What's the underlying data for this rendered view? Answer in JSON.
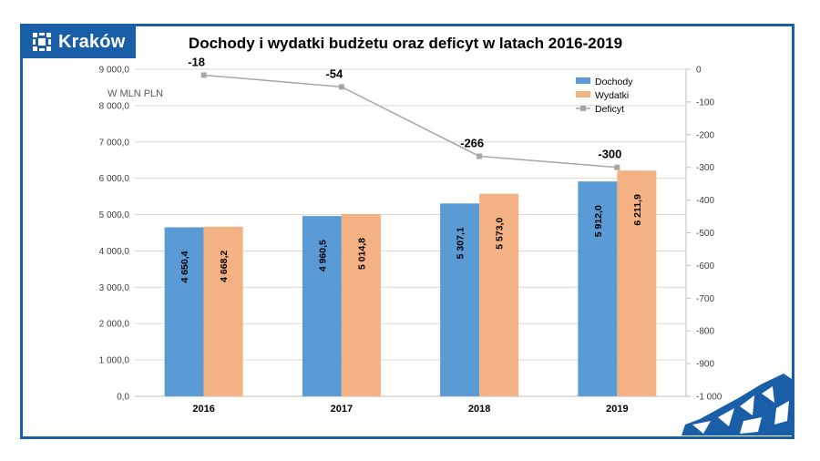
{
  "logo": {
    "text": "Kraków"
  },
  "chart_data": {
    "type": "bar",
    "title": "Dochody i wydatki budżetu oraz deficyt w latach 2016-2019",
    "unit_label": "W MLN PLN",
    "categories": [
      "2016",
      "2017",
      "2018",
      "2019"
    ],
    "series": [
      {
        "name": "Dochody",
        "kind": "bar",
        "axis": "left",
        "color": "#5b9bd5",
        "values": [
          4650.4,
          4960.5,
          5307.1,
          5912.0
        ],
        "labels": [
          "4 650,4",
          "4 960,5",
          "5 307,1",
          "5 912,0"
        ]
      },
      {
        "name": "Wydatki",
        "kind": "bar",
        "axis": "left",
        "color": "#f4b183",
        "values": [
          4668.2,
          5014.8,
          5573.0,
          6211.9
        ],
        "labels": [
          "4 668,2",
          "5 014,8",
          "5 573,0",
          "6 211,9"
        ]
      },
      {
        "name": "Deficyt",
        "kind": "line",
        "axis": "right",
        "color": "#a6a6a6",
        "values": [
          -18,
          -54,
          -266,
          -300
        ],
        "labels": [
          "-18",
          "-54",
          "-266",
          "-300"
        ]
      }
    ],
    "left_axis": {
      "min": 0,
      "max": 9000,
      "ticks": [
        0,
        1000,
        2000,
        3000,
        4000,
        5000,
        6000,
        7000,
        8000,
        9000
      ],
      "tick_labels": [
        "0,0",
        "1 000,0",
        "2 000,0",
        "3 000,0",
        "4 000,0",
        "5 000,0",
        "6 000,0",
        "7 000,0",
        "8 000,0",
        "9 000,0"
      ]
    },
    "right_axis": {
      "min": -1000,
      "max": 0,
      "ticks": [
        0,
        -100,
        -200,
        -300,
        -400,
        -500,
        -600,
        -700,
        -800,
        -900,
        -1000
      ],
      "tick_labels": [
        "0",
        "-100",
        "-200",
        "-300",
        "-400",
        "-500",
        "-600",
        "-700",
        "-800",
        "-900",
        "-1 000"
      ]
    },
    "grid": true,
    "legend_position": "top-right"
  }
}
